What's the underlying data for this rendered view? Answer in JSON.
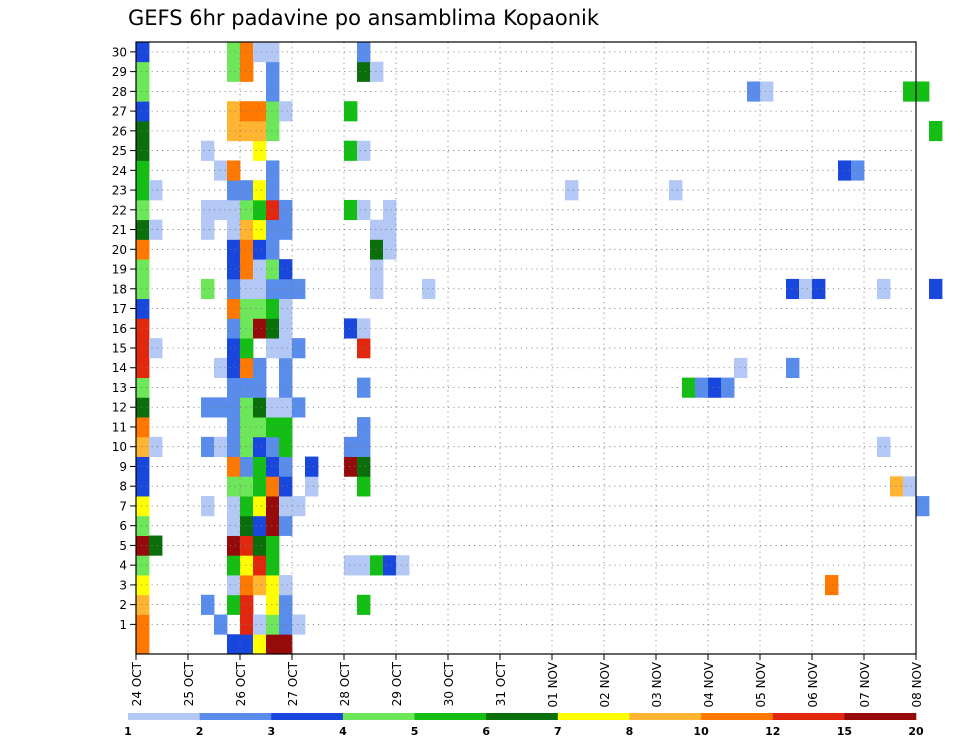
{
  "chart_data": {
    "type": "heatmap",
    "title": "GEFS 6hr padavine po ansamblima Kopaonik",
    "xlabel": "",
    "ylabel": "",
    "x_tick_labels": [
      "24 OCT",
      "25 OCT",
      "26 OCT",
      "27 OCT",
      "28 OCT",
      "29 OCT",
      "30 OCT",
      "31 OCT",
      "01 NOV",
      "02 NOV",
      "03 NOV",
      "04 NOV",
      "05 NOV",
      "06 NOV",
      "07 NOV",
      "08 NOV"
    ],
    "y_tick_labels": [
      "1",
      "2",
      "3",
      "4",
      "5",
      "6",
      "7",
      "8",
      "9",
      "10",
      "11",
      "12",
      "13",
      "14",
      "15",
      "16",
      "17",
      "18",
      "19",
      "20",
      "21",
      "22",
      "23",
      "24",
      "25",
      "26",
      "27",
      "28",
      "29",
      "30"
    ],
    "grid": true,
    "colorbar": {
      "labels": [
        "1",
        "2",
        "3",
        "4",
        "5",
        "6",
        "7",
        "8",
        "10",
        "12",
        "15",
        "20"
      ],
      "colors": [
        "#b4c8f5",
        "#5a8ceb",
        "#1946dc",
        "#6ee65a",
        "#14be14",
        "#0a6e0a",
        "#ffff00",
        "#ffb432",
        "#ff7800",
        "#e1280f",
        "#960a0a"
      ]
    },
    "data_note_units": "cells: [day offset from 24 OCT 00Z in 6h steps, member 0-30, color class 0-10]",
    "cells": [
      [
        0,
        0,
        8
      ],
      [
        0,
        1,
        8
      ],
      [
        0,
        2,
        7
      ],
      [
        0,
        3,
        6
      ],
      [
        0,
        4,
        3
      ],
      [
        0,
        5,
        10
      ],
      [
        0,
        6,
        3
      ],
      [
        0,
        7,
        6
      ],
      [
        0,
        8,
        2
      ],
      [
        0,
        9,
        2
      ],
      [
        0,
        10,
        7
      ],
      [
        0,
        11,
        8
      ],
      [
        0,
        12,
        5
      ],
      [
        0,
        13,
        3
      ],
      [
        0,
        14,
        9
      ],
      [
        0,
        15,
        9
      ],
      [
        0,
        16,
        9
      ],
      [
        0,
        17,
        2
      ],
      [
        0,
        18,
        3
      ],
      [
        0,
        19,
        3
      ],
      [
        0,
        20,
        8
      ],
      [
        0,
        21,
        5
      ],
      [
        0,
        22,
        3
      ],
      [
        0,
        23,
        4
      ],
      [
        0,
        24,
        4
      ],
      [
        0,
        25,
        5
      ],
      [
        0,
        26,
        5
      ],
      [
        0,
        27,
        2
      ],
      [
        0,
        28,
        3
      ],
      [
        0,
        29,
        3
      ],
      [
        0,
        30,
        2
      ],
      [
        1,
        5,
        5
      ],
      [
        1,
        10,
        0
      ],
      [
        1,
        15,
        0
      ],
      [
        1,
        21,
        0
      ],
      [
        1,
        23,
        0
      ],
      [
        5,
        2,
        1
      ],
      [
        5,
        7,
        0
      ],
      [
        5,
        10,
        1
      ],
      [
        5,
        12,
        1
      ],
      [
        5,
        18,
        3
      ],
      [
        5,
        21,
        0
      ],
      [
        5,
        22,
        0
      ],
      [
        5,
        25,
        0
      ],
      [
        6,
        1,
        1
      ],
      [
        6,
        10,
        0
      ],
      [
        6,
        12,
        1
      ],
      [
        6,
        14,
        0
      ],
      [
        6,
        22,
        0
      ],
      [
        6,
        24,
        0
      ],
      [
        7,
        0,
        2
      ],
      [
        7,
        2,
        4
      ],
      [
        7,
        3,
        0
      ],
      [
        7,
        4,
        4
      ],
      [
        7,
        5,
        10
      ],
      [
        7,
        6,
        0
      ],
      [
        7,
        7,
        0
      ],
      [
        7,
        8,
        3
      ],
      [
        7,
        9,
        8
      ],
      [
        7,
        10,
        1
      ],
      [
        7,
        11,
        1
      ],
      [
        7,
        12,
        1
      ],
      [
        7,
        13,
        1
      ],
      [
        7,
        14,
        2
      ],
      [
        7,
        15,
        2
      ],
      [
        7,
        16,
        1
      ],
      [
        7,
        17,
        8
      ],
      [
        7,
        18,
        1
      ],
      [
        7,
        19,
        2
      ],
      [
        7,
        20,
        2
      ],
      [
        7,
        21,
        0
      ],
      [
        7,
        22,
        0
      ],
      [
        7,
        23,
        1
      ],
      [
        7,
        24,
        8
      ],
      [
        7,
        26,
        7
      ],
      [
        7,
        27,
        7
      ],
      [
        7,
        29,
        3
      ],
      [
        7,
        30,
        3
      ],
      [
        8,
        0,
        2
      ],
      [
        8,
        1,
        9
      ],
      [
        8,
        2,
        9
      ],
      [
        8,
        3,
        8
      ],
      [
        8,
        4,
        6
      ],
      [
        8,
        5,
        9
      ],
      [
        8,
        6,
        5
      ],
      [
        8,
        7,
        4
      ],
      [
        8,
        8,
        3
      ],
      [
        8,
        9,
        1
      ],
      [
        8,
        10,
        3
      ],
      [
        8,
        11,
        3
      ],
      [
        8,
        12,
        3
      ],
      [
        8,
        13,
        1
      ],
      [
        8,
        14,
        8
      ],
      [
        8,
        15,
        4
      ],
      [
        8,
        16,
        3
      ],
      [
        8,
        17,
        3
      ],
      [
        8,
        18,
        0
      ],
      [
        8,
        19,
        8
      ],
      [
        8,
        20,
        8
      ],
      [
        8,
        21,
        7
      ],
      [
        8,
        22,
        3
      ],
      [
        8,
        23,
        1
      ],
      [
        8,
        26,
        7
      ],
      [
        8,
        27,
        8
      ],
      [
        8,
        29,
        8
      ],
      [
        8,
        30,
        8
      ],
      [
        9,
        0,
        6
      ],
      [
        9,
        1,
        0
      ],
      [
        9,
        3,
        7
      ],
      [
        9,
        4,
        9
      ],
      [
        9,
        5,
        5
      ],
      [
        9,
        6,
        2
      ],
      [
        9,
        7,
        6
      ],
      [
        9,
        8,
        4
      ],
      [
        9,
        9,
        4
      ],
      [
        9,
        10,
        2
      ],
      [
        9,
        11,
        3
      ],
      [
        9,
        12,
        5
      ],
      [
        9,
        13,
        1
      ],
      [
        9,
        14,
        1
      ],
      [
        9,
        16,
        10
      ],
      [
        9,
        17,
        3
      ],
      [
        9,
        18,
        0
      ],
      [
        9,
        19,
        0
      ],
      [
        9,
        20,
        2
      ],
      [
        9,
        21,
        6
      ],
      [
        9,
        22,
        4
      ],
      [
        9,
        23,
        6
      ],
      [
        9,
        25,
        6
      ],
      [
        9,
        26,
        7
      ],
      [
        9,
        27,
        8
      ],
      [
        9,
        30,
        0
      ],
      [
        10,
        0,
        10
      ],
      [
        10,
        1,
        3
      ],
      [
        10,
        2,
        6
      ],
      [
        10,
        3,
        6
      ],
      [
        10,
        4,
        4
      ],
      [
        10,
        5,
        4
      ],
      [
        10,
        6,
        10
      ],
      [
        10,
        7,
        10
      ],
      [
        10,
        8,
        8
      ],
      [
        10,
        9,
        2
      ],
      [
        10,
        10,
        1
      ],
      [
        10,
        11,
        4
      ],
      [
        10,
        12,
        0
      ],
      [
        10,
        15,
        0
      ],
      [
        10,
        16,
        5
      ],
      [
        10,
        17,
        4
      ],
      [
        10,
        18,
        1
      ],
      [
        10,
        19,
        3
      ],
      [
        10,
        20,
        1
      ],
      [
        10,
        21,
        1
      ],
      [
        10,
        22,
        9
      ],
      [
        10,
        23,
        1
      ],
      [
        10,
        24,
        1
      ],
      [
        10,
        26,
        3
      ],
      [
        10,
        27,
        3
      ],
      [
        10,
        28,
        1
      ],
      [
        10,
        29,
        1
      ],
      [
        10,
        30,
        0
      ],
      [
        11,
        0,
        10
      ],
      [
        11,
        1,
        1
      ],
      [
        11,
        2,
        1
      ],
      [
        11,
        3,
        0
      ],
      [
        11,
        6,
        1
      ],
      [
        11,
        7,
        0
      ],
      [
        11,
        8,
        2
      ],
      [
        11,
        9,
        1
      ],
      [
        11,
        10,
        4
      ],
      [
        11,
        11,
        4
      ],
      [
        11,
        12,
        0
      ],
      [
        11,
        13,
        1
      ],
      [
        11,
        14,
        1
      ],
      [
        11,
        15,
        0
      ],
      [
        11,
        16,
        0
      ],
      [
        11,
        17,
        0
      ],
      [
        11,
        18,
        1
      ],
      [
        11,
        19,
        2
      ],
      [
        11,
        21,
        1
      ],
      [
        11,
        22,
        1
      ],
      [
        11,
        27,
        0
      ],
      [
        12,
        1,
        0
      ],
      [
        12,
        7,
        0
      ],
      [
        12,
        12,
        1
      ],
      [
        12,
        15,
        1
      ],
      [
        12,
        18,
        1
      ],
      [
        13,
        8,
        0
      ],
      [
        13,
        9,
        2
      ],
      [
        16,
        4,
        0
      ],
      [
        16,
        9,
        10
      ],
      [
        16,
        10,
        1
      ],
      [
        16,
        16,
        2
      ],
      [
        16,
        22,
        4
      ],
      [
        16,
        25,
        4
      ],
      [
        16,
        27,
        4
      ],
      [
        17,
        2,
        4
      ],
      [
        17,
        4,
        0
      ],
      [
        17,
        8,
        4
      ],
      [
        17,
        9,
        5
      ],
      [
        17,
        10,
        1
      ],
      [
        17,
        11,
        1
      ],
      [
        17,
        13,
        1
      ],
      [
        17,
        15,
        9
      ],
      [
        17,
        16,
        0
      ],
      [
        17,
        22,
        0
      ],
      [
        17,
        25,
        0
      ],
      [
        17,
        29,
        5
      ],
      [
        17,
        30,
        1
      ],
      [
        18,
        4,
        4
      ],
      [
        18,
        18,
        0
      ],
      [
        18,
        19,
        0
      ],
      [
        18,
        20,
        5
      ],
      [
        18,
        21,
        0
      ],
      [
        18,
        29,
        0
      ],
      [
        19,
        4,
        2
      ],
      [
        19,
        20,
        0
      ],
      [
        19,
        21,
        0
      ],
      [
        19,
        22,
        0
      ],
      [
        20,
        4,
        0
      ],
      [
        22,
        18,
        0
      ],
      [
        33,
        23,
        0
      ],
      [
        41,
        23,
        0
      ],
      [
        42,
        13,
        4
      ],
      [
        43,
        13,
        1
      ],
      [
        44,
        13,
        2
      ],
      [
        45,
        13,
        1
      ],
      [
        46,
        14,
        0
      ],
      [
        47,
        28,
        1
      ],
      [
        48,
        28,
        0
      ],
      [
        50,
        18,
        2
      ],
      [
        50,
        14,
        1
      ],
      [
        51,
        18,
        0
      ],
      [
        52,
        18,
        2
      ],
      [
        53,
        3,
        8
      ],
      [
        54,
        24,
        2
      ],
      [
        55,
        24,
        1
      ],
      [
        57,
        18,
        0
      ],
      [
        57,
        10,
        0
      ],
      [
        58,
        8,
        7
      ],
      [
        59,
        8,
        0
      ],
      [
        59,
        28,
        4
      ],
      [
        60,
        28,
        4
      ],
      [
        60,
        7,
        1
      ],
      [
        61,
        18,
        2
      ],
      [
        61,
        26,
        4
      ]
    ]
  }
}
